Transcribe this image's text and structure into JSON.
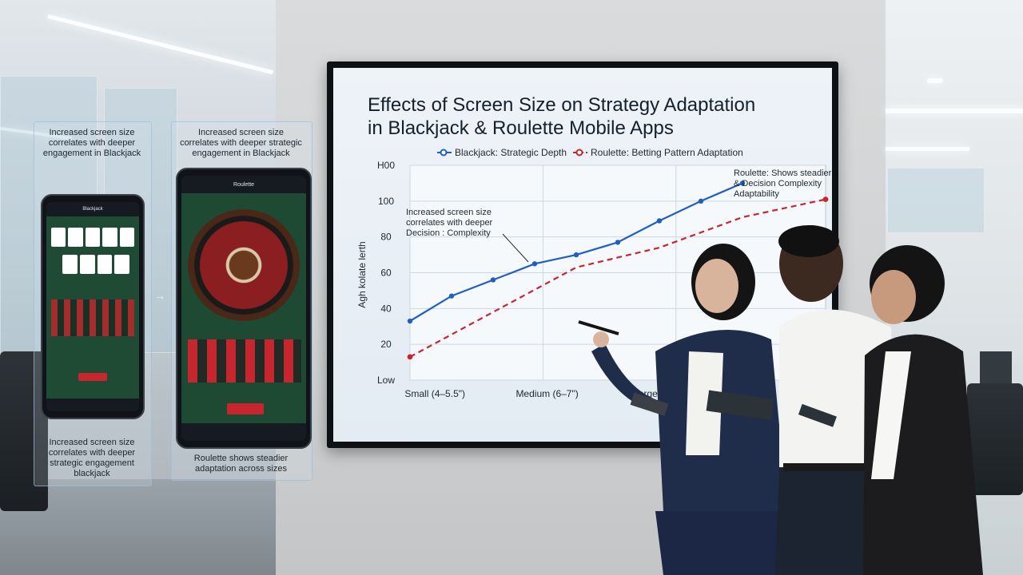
{
  "left_card_1": [
    "Increased screen size",
    "correlates with deeper",
    "engagement in Blackjack"
  ],
  "left_card_2": [
    "Increased screen size",
    "correlates with deeper strategic",
    "engagement in Blackjack"
  ],
  "bottom_card_1": [
    "Increased screen size",
    "correlates with deeper",
    "strategic engagement",
    "blackjack"
  ],
  "bottom_card_2": [
    "Roulette shows steadier",
    "adaptation across sizes"
  ],
  "phone_small": {
    "header_title": "Blackjack"
  },
  "phone_large": {
    "header_title": "Roulette"
  },
  "arrow_glyph": "→",
  "colors": {
    "blackjack": "#1f5fc4",
    "roulette": "#c8262f",
    "felt": "#1e4a33"
  },
  "chart_data": {
    "type": "line",
    "title_lines": [
      "Effects of Screen Size on Strategy Adaptation",
      "in Blackjack & Roulette Mobile Apps"
    ],
    "xlabel": "",
    "ylabel": "Agh kolate lerth",
    "y_ticks": [
      "Low",
      "20",
      "40",
      "60",
      "80",
      "100",
      "H00"
    ],
    "x_ticks": [
      "Small (4–5.5\")",
      "Medium (6–7\")",
      "Large (7.5+)"
    ],
    "ylim": [
      0,
      120
    ],
    "grid": true,
    "legend_position": "top",
    "series": [
      {
        "name": "Blackjack: Strategic Depth",
        "style": "solid",
        "color": "#1f5fc4",
        "points": [
          [
            0,
            33
          ],
          [
            1,
            47
          ],
          [
            2,
            56
          ],
          [
            3,
            65
          ],
          [
            4,
            70
          ],
          [
            5,
            77
          ],
          [
            6,
            89
          ],
          [
            7,
            100
          ],
          [
            8,
            110
          ]
        ]
      },
      {
        "name": "Roulette: Betting Pattern Adaptation",
        "style": "dashed",
        "color": "#c8262f",
        "points": [
          [
            0,
            13
          ],
          [
            2,
            38
          ],
          [
            4,
            63
          ],
          [
            6,
            74
          ],
          [
            8,
            91
          ],
          [
            10,
            101
          ]
        ]
      }
    ],
    "annotations": [
      {
        "lines": [
          "Increased screen size",
          "correlates with deeper",
          "Decision : Complexity"
        ]
      },
      {
        "lines": [
          "Roulette: Shows steadier",
          "& Decision Complexity",
          "Adaptability"
        ]
      }
    ]
  }
}
